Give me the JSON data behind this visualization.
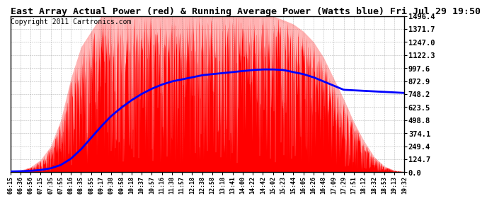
{
  "title": "East Array Actual Power (red) & Running Average Power (Watts blue) Fri Jul 29 19:50",
  "copyright": "Copyright 2011 Cartronics.com",
  "yticks": [
    0.0,
    124.7,
    249.4,
    374.1,
    498.8,
    623.5,
    748.2,
    872.9,
    997.6,
    1122.3,
    1247.0,
    1371.7,
    1496.4
  ],
  "ymax": 1496.4,
  "bar_color": "#ff0000",
  "avg_color": "#0000ff",
  "background_color": "#ffffff",
  "grid_color": "#888888",
  "title_fontsize": 9.5,
  "copyright_fontsize": 7,
  "xtick_labels": [
    "06:15",
    "06:36",
    "06:56",
    "07:15",
    "07:35",
    "07:55",
    "08:16",
    "08:35",
    "08:55",
    "09:17",
    "09:38",
    "09:58",
    "10:18",
    "10:37",
    "10:57",
    "11:16",
    "11:38",
    "11:57",
    "12:18",
    "12:38",
    "12:58",
    "13:18",
    "13:41",
    "14:00",
    "14:22",
    "14:42",
    "15:02",
    "15:23",
    "15:44",
    "16:05",
    "16:26",
    "16:48",
    "17:09",
    "17:29",
    "17:51",
    "18:12",
    "18:32",
    "18:53",
    "19:13",
    "19:32"
  ],
  "envelope_top": [
    10,
    20,
    50,
    120,
    250,
    500,
    900,
    1200,
    1350,
    1496,
    1496,
    1496,
    1496,
    1496,
    1496,
    1496,
    1496,
    1496,
    1496,
    1496,
    1496,
    1496,
    1496,
    1496,
    1496,
    1496,
    1496,
    1460,
    1420,
    1350,
    1250,
    1100,
    900,
    700,
    480,
    300,
    150,
    60,
    20,
    5
  ],
  "running_avg": [
    8,
    10,
    14,
    22,
    38,
    70,
    130,
    220,
    330,
    440,
    540,
    620,
    690,
    750,
    800,
    840,
    870,
    890,
    910,
    930,
    940,
    950,
    960,
    970,
    980,
    985,
    985,
    980,
    960,
    940,
    910,
    870,
    830,
    790,
    785,
    780,
    775,
    770,
    765,
    760
  ]
}
